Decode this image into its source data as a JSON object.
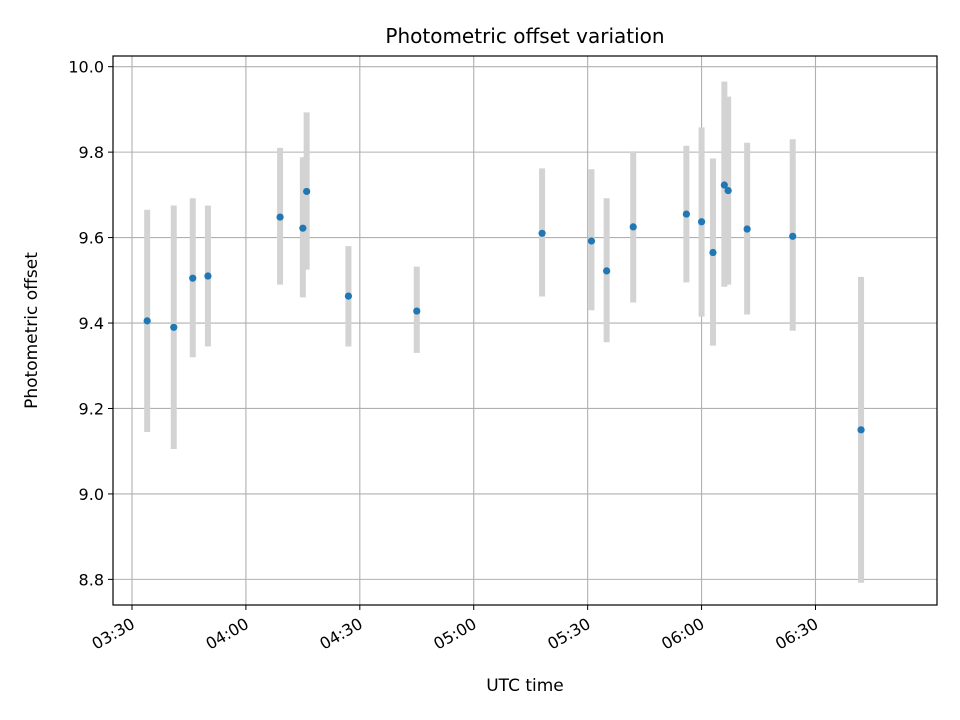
{
  "chart_data": {
    "type": "scatter",
    "title": "Photometric offset variation",
    "xlabel": "UTC time",
    "ylabel": "Photometric offset",
    "xlim": [
      "03:25",
      "07:02"
    ],
    "ylim": [
      8.74,
      10.025
    ],
    "x_ticks": [
      "03:30",
      "04:00",
      "04:30",
      "05:00",
      "05:30",
      "06:00",
      "06:30"
    ],
    "y_ticks": [
      "8.8",
      "9.0",
      "9.2",
      "9.4",
      "9.6",
      "9.8",
      "10.0"
    ],
    "grid": true,
    "legend": false,
    "colors": {
      "point": "#1f77b4",
      "errorbar": "#d3d3d3",
      "grid": "#b0b0b0"
    },
    "series": [
      {
        "x": [
          "03:34",
          "03:41",
          "03:46",
          "03:50",
          "04:09",
          "04:15",
          "04:16",
          "04:27",
          "04:45",
          "05:18",
          "05:31",
          "05:35",
          "05:42",
          "05:56",
          "06:00",
          "06:03",
          "06:06",
          "06:07",
          "06:12",
          "06:24",
          "06:42"
        ],
        "y": [
          9.405,
          9.39,
          9.505,
          9.51,
          9.648,
          9.622,
          9.708,
          9.463,
          9.428,
          9.61,
          9.592,
          9.522,
          9.625,
          9.655,
          9.637,
          9.565,
          9.723,
          9.71,
          9.62,
          9.603,
          9.15
        ],
        "y_low": [
          9.145,
          9.105,
          9.32,
          9.345,
          9.49,
          9.46,
          9.525,
          9.345,
          9.33,
          9.462,
          9.43,
          9.355,
          9.448,
          9.495,
          9.415,
          9.347,
          9.485,
          9.49,
          9.42,
          9.382,
          8.792
        ],
        "y_high": [
          9.665,
          9.675,
          9.692,
          9.675,
          9.81,
          9.788,
          9.893,
          9.58,
          9.532,
          9.762,
          9.76,
          9.692,
          9.802,
          9.815,
          9.858,
          9.785,
          9.965,
          9.93,
          9.822,
          9.83,
          9.508
        ]
      }
    ]
  }
}
